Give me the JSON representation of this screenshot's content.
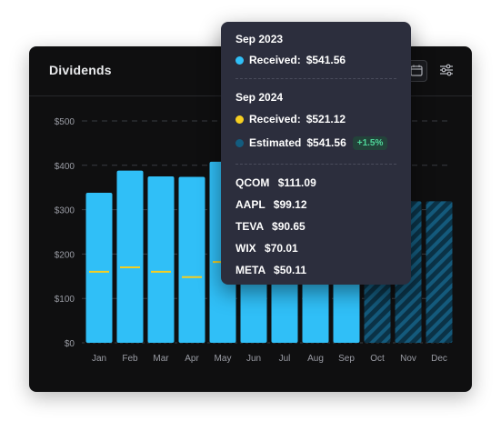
{
  "card": {
    "title": "Dividends"
  },
  "colors": {
    "received_2023": "#30bff7",
    "received_2024": "#f6cf21",
    "estimated": "#135c7f",
    "badge_text": "#4fd69a"
  },
  "chart_data": {
    "type": "bar",
    "title": "Dividends",
    "xlabel": "",
    "ylabel": "",
    "ylim": [
      0,
      500
    ],
    "yticks": [
      "$0",
      "$100",
      "$200",
      "$300",
      "$400",
      "$500"
    ],
    "ytick_values": [
      0,
      100,
      200,
      300,
      400,
      500
    ],
    "grid": true,
    "categories": [
      "Jan",
      "Feb",
      "Mar",
      "Apr",
      "May",
      "Jun",
      "Jul",
      "Aug",
      "Sep",
      "Oct",
      "Nov",
      "Dec"
    ],
    "series": [
      {
        "name": "Received",
        "year": "2024",
        "kind": "bar",
        "color": "#30bff7",
        "values": [
          338,
          388,
          375,
          374,
          408,
          null,
          null,
          null,
          null,
          null,
          null,
          null
        ]
      },
      {
        "name": "Estimated",
        "kind": "hatched-bar",
        "color": "#135c7f",
        "values": [
          null,
          null,
          null,
          null,
          null,
          null,
          null,
          null,
          null,
          319,
          319,
          319
        ]
      },
      {
        "name": "Received",
        "year": "2023",
        "kind": "marker",
        "color": "#f6cf21",
        "values": [
          160,
          170,
          160,
          148,
          182,
          null,
          null,
          null,
          null,
          null,
          null,
          null
        ]
      }
    ]
  },
  "tooltip": {
    "section1_title": "Sep 2023",
    "received_label": "Received:",
    "received_2023_value": "$541.56",
    "section2_title": "Sep 2024",
    "received_2024_value": "$521.12",
    "estimated_label": "Estimated",
    "estimated_value": "$541.56",
    "change_badge": "+1.5%",
    "holdings": [
      {
        "ticker": "QCOM",
        "value": "$111.09"
      },
      {
        "ticker": "AAPL",
        "value": "$99.12"
      },
      {
        "ticker": "TEVA",
        "value": "$90.65"
      },
      {
        "ticker": "WIX",
        "value": "$70.01"
      },
      {
        "ticker": "META",
        "value": "$50.11"
      }
    ]
  }
}
